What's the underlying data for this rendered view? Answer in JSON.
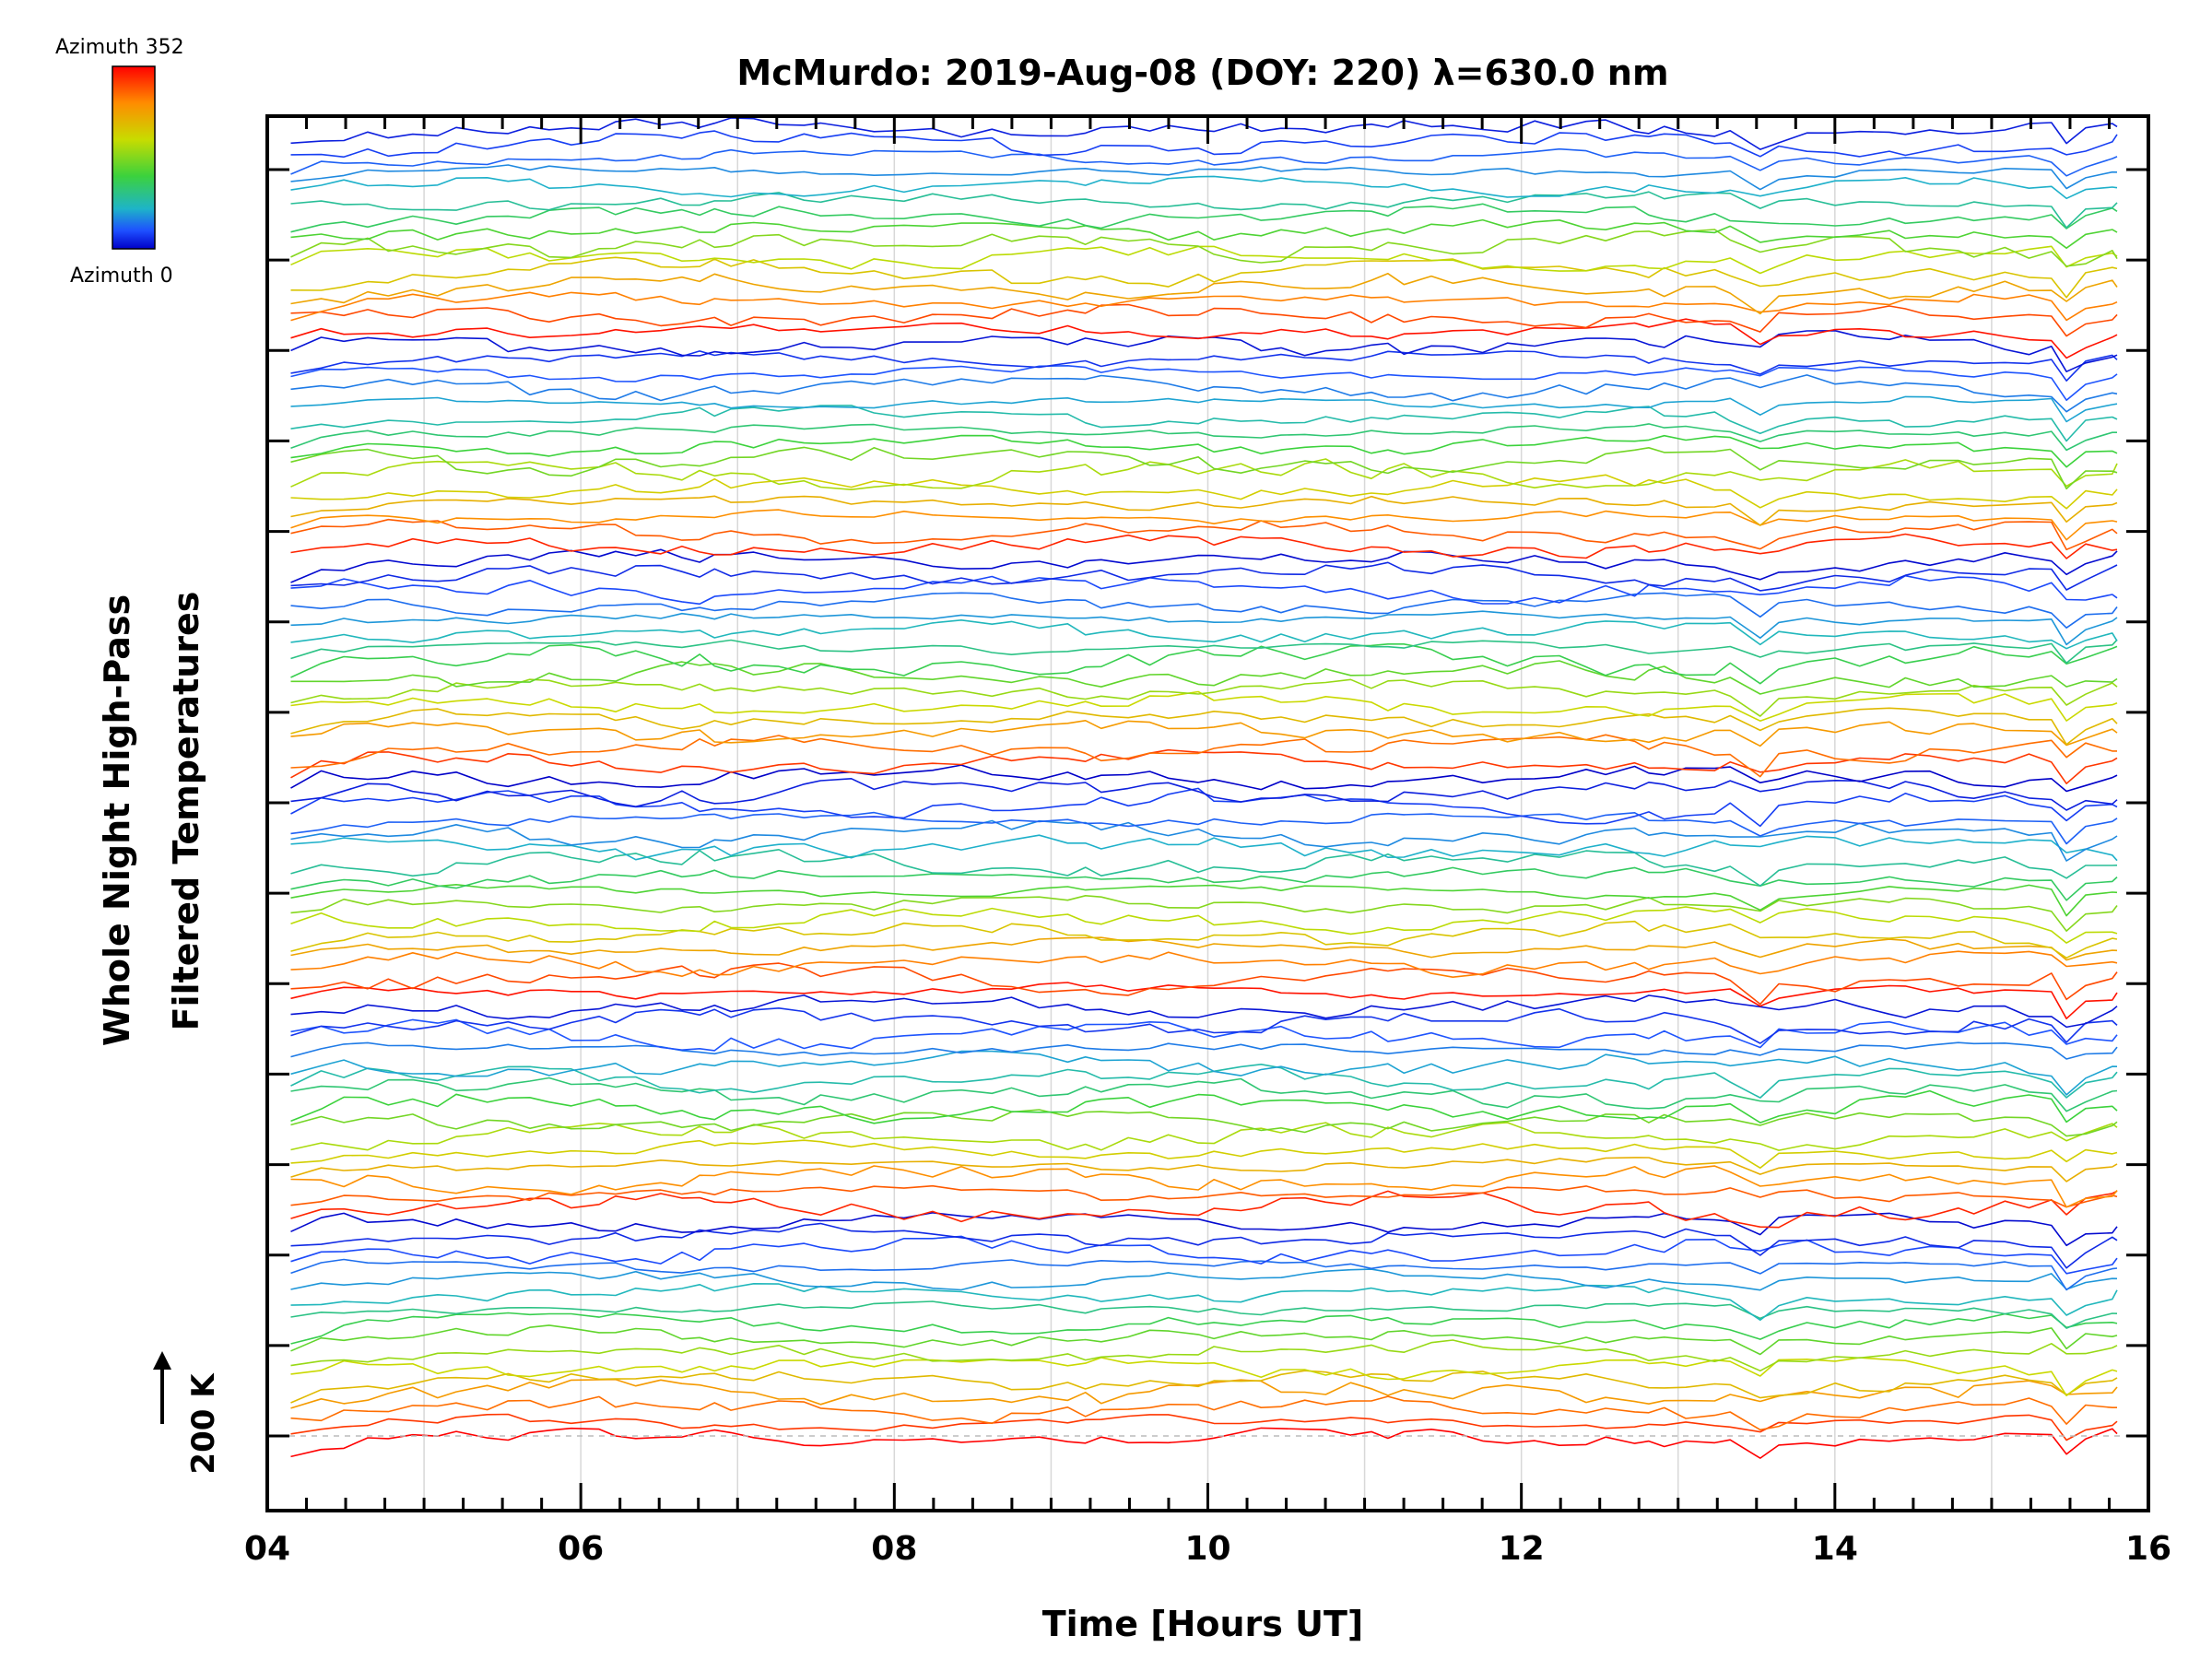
{
  "chart_data": {
    "type": "line",
    "title": "McMurdo: 2019-Aug-08 (DOY: 220) λ=630.0 nm",
    "xlabel": "Time [Hours UT]",
    "ylabel_line1": "Whole Night High-Pass",
    "ylabel_line2": "Filtered Temperatures",
    "xlim": [
      4,
      16
    ],
    "xticks": [
      "04",
      "06",
      "08",
      "10",
      "12",
      "14",
      "16"
    ],
    "x_minor_step": 0.25,
    "y_offset_ticks": 15,
    "scale_label": "200 K",
    "colorbar": {
      "top_label": "Azimuth 352",
      "bottom_label": "Azimuth 0",
      "stops": [
        "#ff0000",
        "#ff8c00",
        "#c8dc00",
        "#3cd23c",
        "#1eb4c8",
        "#1e50ff",
        "#0000c8"
      ]
    },
    "series_description": "High-pass filtered temperature traces, one per azimuth (0–352), vertically offset",
    "series_count": 92,
    "time_start": 4.15,
    "time_end": 15.8,
    "common_features_hours": [
      10.85,
      12.35,
      13.5,
      15.5
    ]
  }
}
